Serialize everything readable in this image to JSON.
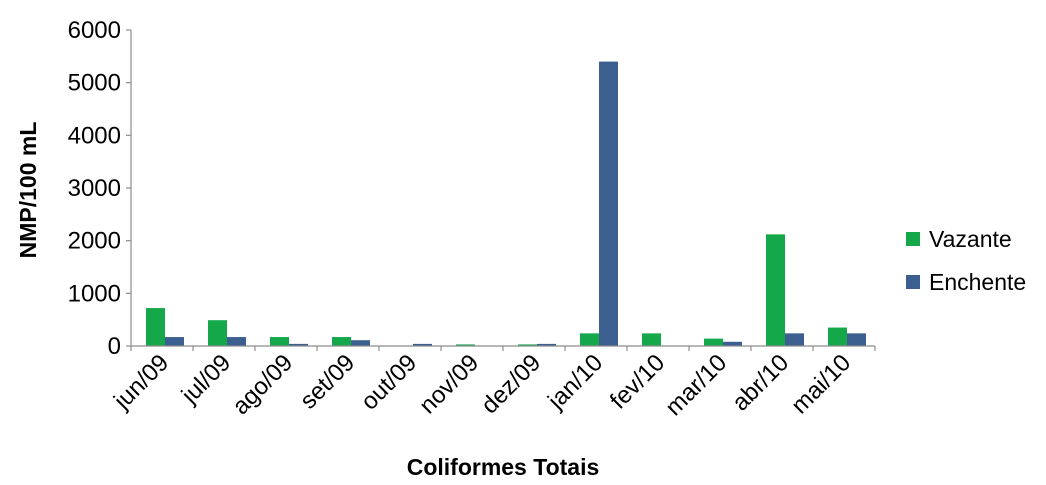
{
  "chart_data": {
    "type": "bar",
    "categories": [
      "jun/09",
      "jul/09",
      "ago/09",
      "set/09",
      "out/09",
      "nov/09",
      "dez/09",
      "jan/10",
      "fev/10",
      "mar/10",
      "abr/10",
      "mai/10"
    ],
    "series": [
      {
        "name": "Vazante",
        "color": "#14a84a",
        "values": [
          720,
          490,
          170,
          170,
          0,
          30,
          30,
          240,
          240,
          140,
          2120,
          350
        ]
      },
      {
        "name": "Enchente",
        "color": "#3b5f8f",
        "values": [
          170,
          170,
          40,
          110,
          40,
          0,
          40,
          5400,
          0,
          80,
          240,
          240
        ]
      }
    ],
    "xlabel": "Coliformes Totais",
    "ylabel": "NMP/100 mL",
    "ylim": [
      0,
      6000
    ],
    "yticks": [
      "0",
      "1000",
      "2000",
      "3000",
      "4000",
      "5000",
      "6000"
    ],
    "grid": false,
    "legend_position": "right"
  }
}
